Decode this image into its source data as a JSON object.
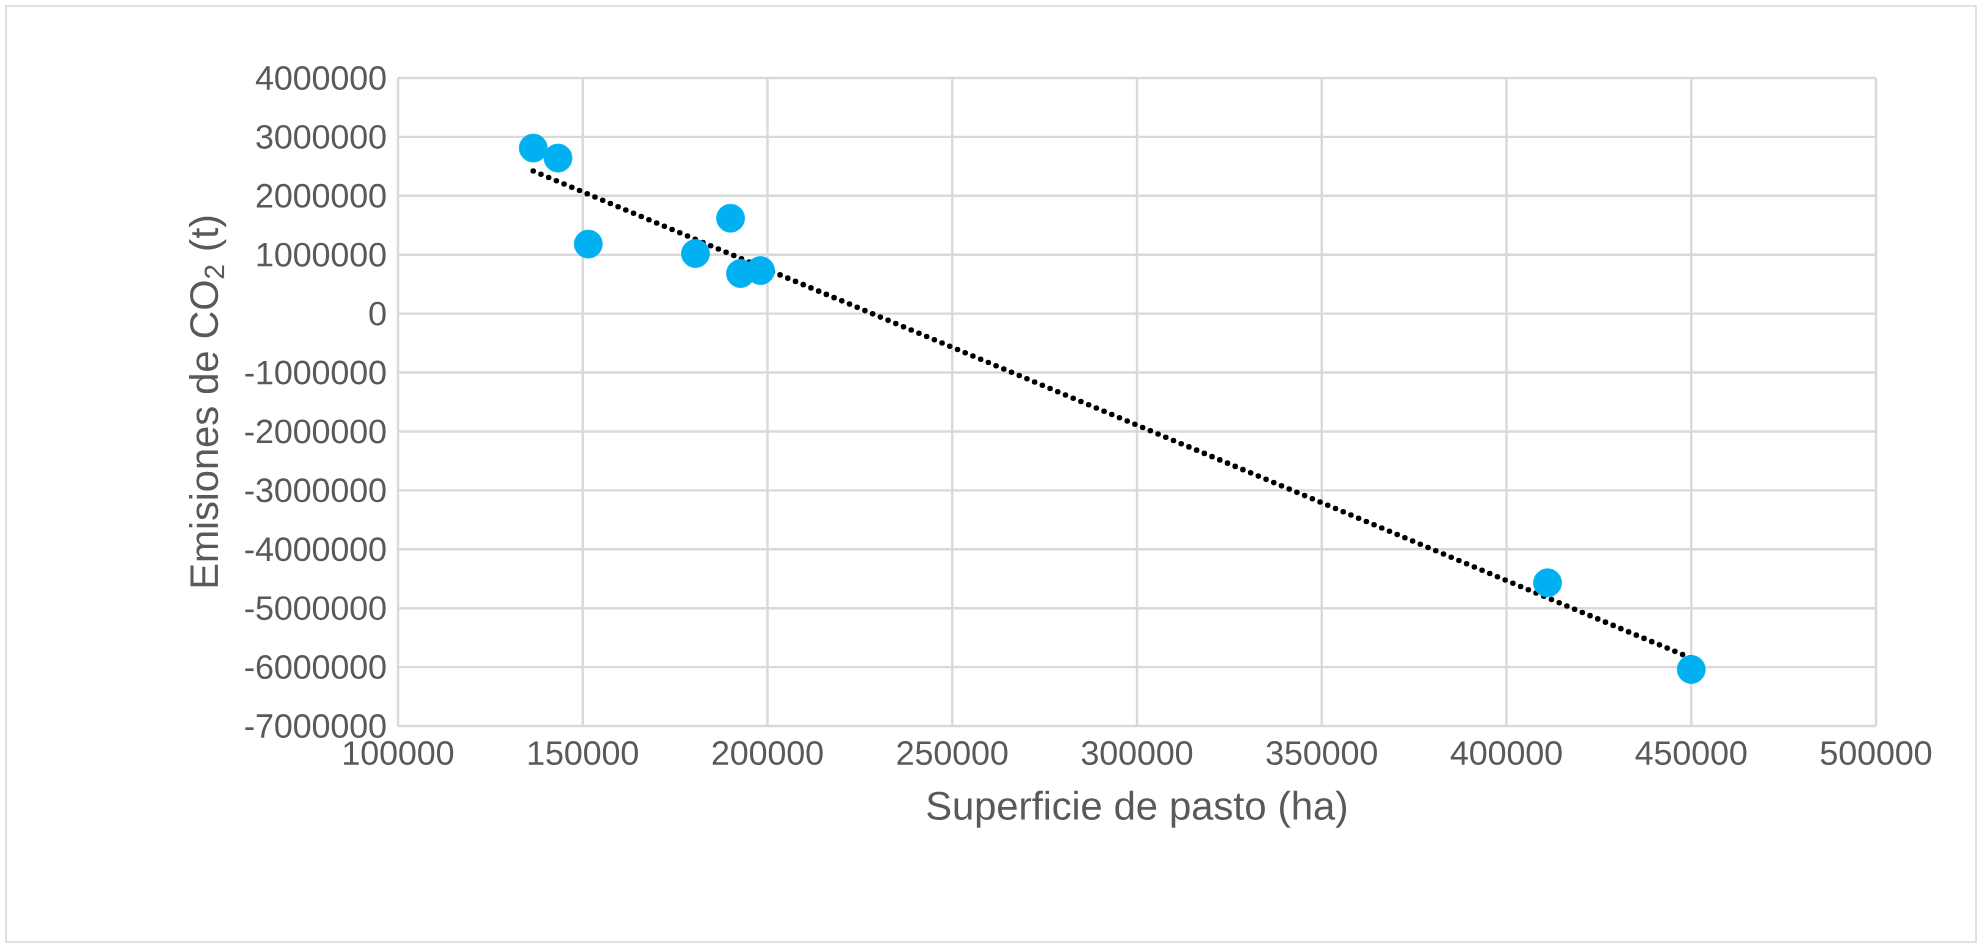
{
  "chart_data": {
    "type": "scatter",
    "xlabel": "Superficie de pasto (ha)",
    "ylabel": "Emisiones de CO$_{2}$ (t)",
    "xlim": [
      100000,
      500000
    ],
    "xticks": [
      100000,
      150000,
      200000,
      250000,
      300000,
      350000,
      400000,
      450000,
      500000
    ],
    "ylim": [
      -7000000,
      4000000
    ],
    "yticks": [
      -7000000,
      -6000000,
      -5000000,
      -4000000,
      -3000000,
      -2000000,
      -1000000,
      0,
      1000000,
      2000000,
      3000000,
      4000000
    ],
    "grid": true,
    "series": [
      {
        "type": "scatter",
        "color": "#00b0f0",
        "marker": "circle",
        "x": [
          136600,
          143300,
          151500,
          180500,
          190000,
          192700,
          198100,
          411100,
          450000
        ],
        "values": [
          2810000,
          2640000,
          1180000,
          1020000,
          1620000,
          680000,
          730000,
          -4570000,
          -6040000
        ]
      },
      {
        "type": "line",
        "color": "#000000",
        "marker": "none",
        "line_style": "dotted",
        "x": [
          136600,
          450000
        ],
        "values": [
          2420000,
          -5850000
        ]
      }
    ]
  }
}
